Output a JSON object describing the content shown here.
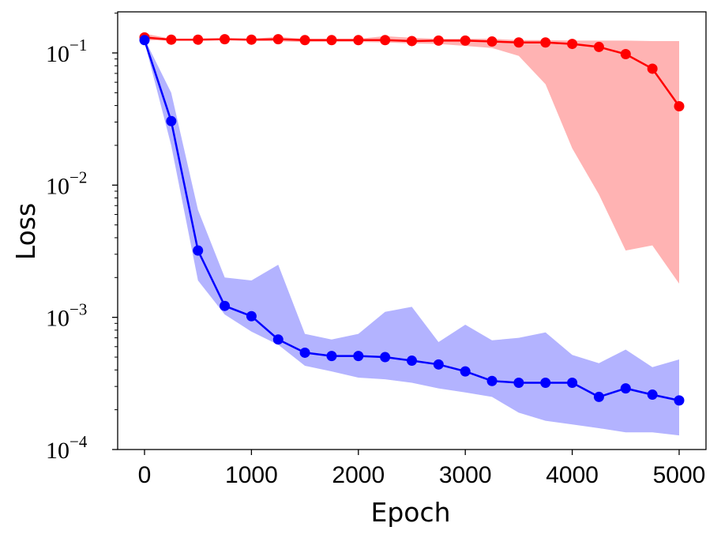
{
  "chart_data": {
    "type": "line",
    "title": "",
    "xlabel": "Epoch",
    "ylabel": "Loss",
    "yscale": "log",
    "xlim": [
      -250,
      5250
    ],
    "ylim": [
      0.0001,
      0.2
    ],
    "x_ticks": [
      0,
      1000,
      2000,
      3000,
      4000,
      5000
    ],
    "x_tick_labels": [
      "0",
      "1000",
      "2000",
      "3000",
      "4000",
      "5000"
    ],
    "y_ticks": [
      {
        "value": 0.1,
        "base": "10",
        "exp": "−1"
      },
      {
        "value": 0.01,
        "base": "10",
        "exp": "−2"
      },
      {
        "value": 0.001,
        "base": "10",
        "exp": "−3"
      },
      {
        "value": 0.0001,
        "base": "10",
        "exp": "−4"
      }
    ],
    "x": [
      0,
      250,
      500,
      750,
      1000,
      1250,
      1500,
      1750,
      2000,
      2250,
      2500,
      2750,
      3000,
      3250,
      3500,
      3750,
      4000,
      4250,
      4500,
      4750,
      5000
    ],
    "series": [
      {
        "name": "red",
        "color": "#ff0000",
        "band_color": "#ffb3b3",
        "values": [
          0.131,
          0.126,
          0.126,
          0.127,
          0.126,
          0.127,
          0.125,
          0.125,
          0.125,
          0.125,
          0.123,
          0.124,
          0.124,
          0.122,
          0.12,
          0.12,
          0.117,
          0.111,
          0.098,
          0.076,
          0.0395
        ],
        "upper": [
          0.14,
          0.128,
          0.128,
          0.128,
          0.128,
          0.132,
          0.128,
          0.128,
          0.128,
          0.134,
          0.13,
          0.128,
          0.128,
          0.128,
          0.125,
          0.125,
          0.124,
          0.124,
          0.124,
          0.123,
          0.123
        ],
        "lower": [
          0.125,
          0.124,
          0.124,
          0.125,
          0.124,
          0.122,
          0.121,
          0.121,
          0.121,
          0.12,
          0.118,
          0.117,
          0.113,
          0.109,
          0.095,
          0.058,
          0.019,
          0.0085,
          0.0032,
          0.0035,
          0.0018
        ]
      },
      {
        "name": "blue",
        "color": "#0000ff",
        "band_color": "#b3b3ff",
        "values": [
          0.125,
          0.0305,
          0.0032,
          0.00122,
          0.00102,
          0.00068,
          0.00054,
          0.00051,
          0.00051,
          0.0005,
          0.00047,
          0.00044,
          0.00039,
          0.00033,
          0.00032,
          0.00032,
          0.00032,
          0.00025,
          0.00029,
          0.00026,
          0.000235
        ],
        "upper": [
          0.128,
          0.05,
          0.0065,
          0.002,
          0.0019,
          0.0025,
          0.00075,
          0.00068,
          0.00075,
          0.0011,
          0.0012,
          0.00065,
          0.00088,
          0.00067,
          0.0007,
          0.00077,
          0.00052,
          0.00045,
          0.00057,
          0.00042,
          0.00048
        ],
        "lower": [
          0.121,
          0.02,
          0.0019,
          0.00105,
          0.00078,
          0.00062,
          0.00043,
          0.00039,
          0.00035,
          0.00034,
          0.00032,
          0.00029,
          0.00027,
          0.00025,
          0.00019,
          0.000165,
          0.000155,
          0.000145,
          0.000135,
          0.000135,
          0.000128
        ]
      }
    ]
  }
}
